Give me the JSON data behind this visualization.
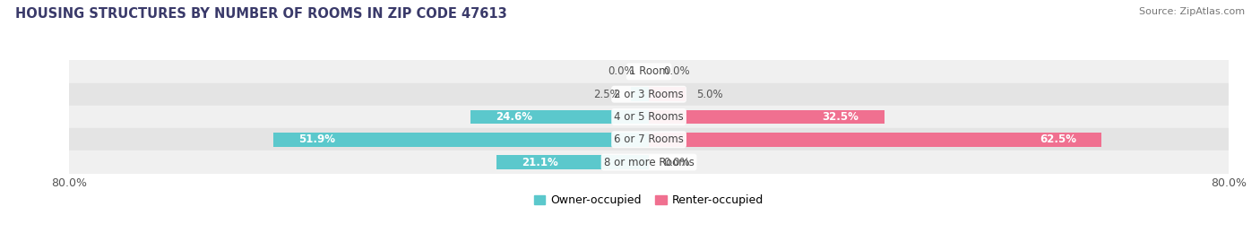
{
  "title": "HOUSING STRUCTURES BY NUMBER OF ROOMS IN ZIP CODE 47613",
  "source": "Source: ZipAtlas.com",
  "categories": [
    "1 Room",
    "2 or 3 Rooms",
    "4 or 5 Rooms",
    "6 or 7 Rooms",
    "8 or more Rooms"
  ],
  "owner_values": [
    0.0,
    2.5,
    24.6,
    51.9,
    21.1
  ],
  "renter_values": [
    0.0,
    5.0,
    32.5,
    62.5,
    0.0
  ],
  "owner_color": "#5BC8CC",
  "renter_color": "#F07090",
  "row_bg_light": "#F0F0F0",
  "row_bg_dark": "#E4E4E4",
  "xlim": [
    -80,
    80
  ],
  "title_fontsize": 10.5,
  "source_fontsize": 8,
  "bar_height": 0.62,
  "fig_width": 14.06,
  "fig_height": 2.69,
  "dpi": 100
}
